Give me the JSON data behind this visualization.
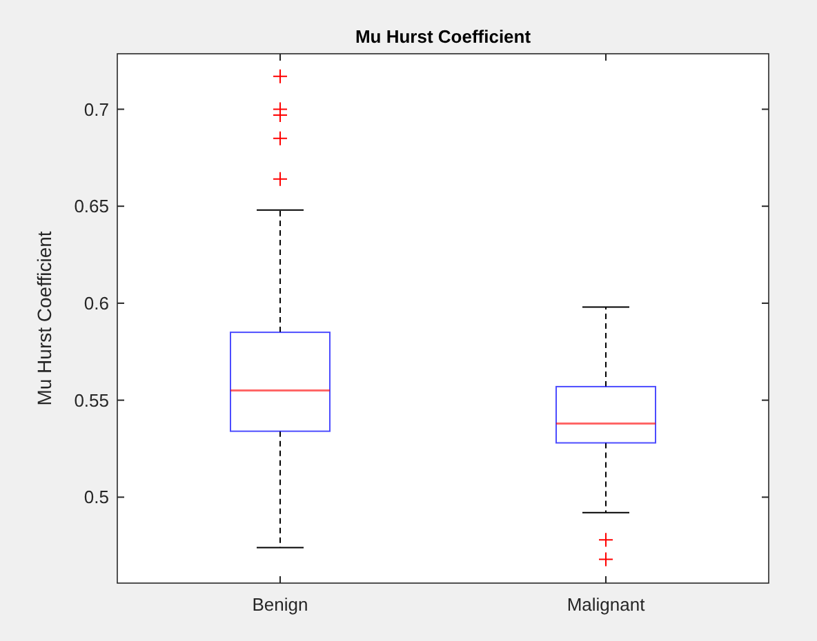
{
  "chart_data": {
    "type": "box",
    "title": "Mu Hurst Coefficient",
    "ylabel": "Mu Hurst Coefficient",
    "categories": [
      "Benign",
      "Malignant"
    ],
    "boxes": [
      {
        "low": 0.474,
        "q1": 0.534,
        "median": 0.555,
        "q3": 0.585,
        "high": 0.648,
        "outliers": [
          0.717,
          0.7,
          0.697,
          0.685,
          0.664
        ]
      },
      {
        "low": 0.492,
        "q1": 0.528,
        "median": 0.538,
        "q3": 0.557,
        "high": 0.598,
        "outliers": [
          0.478,
          0.468
        ]
      }
    ],
    "color": "#0000ff",
    "ylim": [
      0.4557,
      0.7286
    ],
    "yticks": [
      0.5,
      0.55,
      0.6,
      0.65,
      0.7
    ],
    "grid": false
  }
}
